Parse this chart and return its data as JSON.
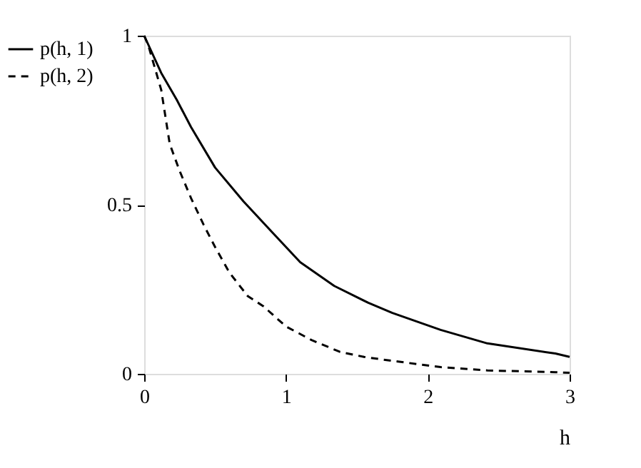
{
  "chart_data": {
    "type": "line",
    "xlabel": "h",
    "xlim": [
      0,
      3
    ],
    "xticks": [
      0,
      1,
      2,
      3
    ],
    "ylim": [
      0,
      1
    ],
    "yticks": [
      0,
      0.5,
      1
    ],
    "grid": false,
    "legend": "left",
    "marker": "none",
    "series": [
      {
        "name": "p(h, 1)",
        "color": "#000000",
        "line_style": "solid",
        "x": [
          0,
          0.12,
          0.23,
          0.33,
          0.5,
          0.7,
          0.9,
          1.1,
          1.34,
          1.58,
          1.75,
          2.09,
          2.42,
          2.9,
          3
        ],
        "values": [
          1,
          0.89,
          0.81,
          0.73,
          0.61,
          0.51,
          0.42,
          0.33,
          0.26,
          0.21,
          0.18,
          0.13,
          0.09,
          0.06,
          0.05
        ]
      },
      {
        "name": "p(h, 2)",
        "color": "#000000",
        "line_style": "dashed",
        "x": [
          0,
          0.03,
          0.12,
          0.18,
          0.25,
          0.33,
          0.42,
          0.5,
          0.6,
          0.73,
          0.84,
          1.0,
          1.18,
          1.38,
          1.55,
          1.72,
          2.09,
          2.42,
          2.9,
          3
        ],
        "values": [
          1,
          0.97,
          0.84,
          0.68,
          0.6,
          0.52,
          0.44,
          0.375,
          0.3,
          0.23,
          0.2,
          0.14,
          0.1,
          0.065,
          0.05,
          0.04,
          0.02,
          0.01,
          0.005,
          0.003
        ]
      }
    ]
  }
}
